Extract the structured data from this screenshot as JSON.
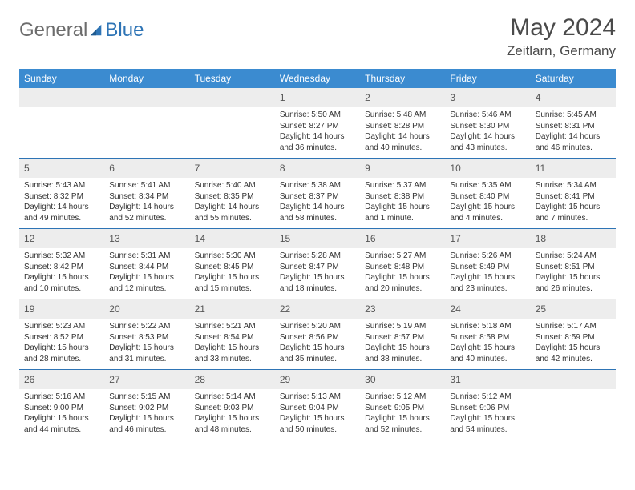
{
  "logo": {
    "text1": "General",
    "text2": "Blue"
  },
  "title": "May 2024",
  "location": "Zeitlarn, Germany",
  "colors": {
    "header_bg": "#3b8bd0",
    "header_text": "#ffffff",
    "divider": "#2e74b5",
    "daynum_bg": "#ededed",
    "text": "#333333",
    "logo_gray": "#6c6c6c",
    "logo_blue": "#2e74b5"
  },
  "day_names": [
    "Sunday",
    "Monday",
    "Tuesday",
    "Wednesday",
    "Thursday",
    "Friday",
    "Saturday"
  ],
  "weeks": [
    [
      {
        "n": "",
        "sr": "",
        "ss": "",
        "dl": ""
      },
      {
        "n": "",
        "sr": "",
        "ss": "",
        "dl": ""
      },
      {
        "n": "",
        "sr": "",
        "ss": "",
        "dl": ""
      },
      {
        "n": "1",
        "sr": "Sunrise: 5:50 AM",
        "ss": "Sunset: 8:27 PM",
        "dl": "Daylight: 14 hours and 36 minutes."
      },
      {
        "n": "2",
        "sr": "Sunrise: 5:48 AM",
        "ss": "Sunset: 8:28 PM",
        "dl": "Daylight: 14 hours and 40 minutes."
      },
      {
        "n": "3",
        "sr": "Sunrise: 5:46 AM",
        "ss": "Sunset: 8:30 PM",
        "dl": "Daylight: 14 hours and 43 minutes."
      },
      {
        "n": "4",
        "sr": "Sunrise: 5:45 AM",
        "ss": "Sunset: 8:31 PM",
        "dl": "Daylight: 14 hours and 46 minutes."
      }
    ],
    [
      {
        "n": "5",
        "sr": "Sunrise: 5:43 AM",
        "ss": "Sunset: 8:32 PM",
        "dl": "Daylight: 14 hours and 49 minutes."
      },
      {
        "n": "6",
        "sr": "Sunrise: 5:41 AM",
        "ss": "Sunset: 8:34 PM",
        "dl": "Daylight: 14 hours and 52 minutes."
      },
      {
        "n": "7",
        "sr": "Sunrise: 5:40 AM",
        "ss": "Sunset: 8:35 PM",
        "dl": "Daylight: 14 hours and 55 minutes."
      },
      {
        "n": "8",
        "sr": "Sunrise: 5:38 AM",
        "ss": "Sunset: 8:37 PM",
        "dl": "Daylight: 14 hours and 58 minutes."
      },
      {
        "n": "9",
        "sr": "Sunrise: 5:37 AM",
        "ss": "Sunset: 8:38 PM",
        "dl": "Daylight: 15 hours and 1 minute."
      },
      {
        "n": "10",
        "sr": "Sunrise: 5:35 AM",
        "ss": "Sunset: 8:40 PM",
        "dl": "Daylight: 15 hours and 4 minutes."
      },
      {
        "n": "11",
        "sr": "Sunrise: 5:34 AM",
        "ss": "Sunset: 8:41 PM",
        "dl": "Daylight: 15 hours and 7 minutes."
      }
    ],
    [
      {
        "n": "12",
        "sr": "Sunrise: 5:32 AM",
        "ss": "Sunset: 8:42 PM",
        "dl": "Daylight: 15 hours and 10 minutes."
      },
      {
        "n": "13",
        "sr": "Sunrise: 5:31 AM",
        "ss": "Sunset: 8:44 PM",
        "dl": "Daylight: 15 hours and 12 minutes."
      },
      {
        "n": "14",
        "sr": "Sunrise: 5:30 AM",
        "ss": "Sunset: 8:45 PM",
        "dl": "Daylight: 15 hours and 15 minutes."
      },
      {
        "n": "15",
        "sr": "Sunrise: 5:28 AM",
        "ss": "Sunset: 8:47 PM",
        "dl": "Daylight: 15 hours and 18 minutes."
      },
      {
        "n": "16",
        "sr": "Sunrise: 5:27 AM",
        "ss": "Sunset: 8:48 PM",
        "dl": "Daylight: 15 hours and 20 minutes."
      },
      {
        "n": "17",
        "sr": "Sunrise: 5:26 AM",
        "ss": "Sunset: 8:49 PM",
        "dl": "Daylight: 15 hours and 23 minutes."
      },
      {
        "n": "18",
        "sr": "Sunrise: 5:24 AM",
        "ss": "Sunset: 8:51 PM",
        "dl": "Daylight: 15 hours and 26 minutes."
      }
    ],
    [
      {
        "n": "19",
        "sr": "Sunrise: 5:23 AM",
        "ss": "Sunset: 8:52 PM",
        "dl": "Daylight: 15 hours and 28 minutes."
      },
      {
        "n": "20",
        "sr": "Sunrise: 5:22 AM",
        "ss": "Sunset: 8:53 PM",
        "dl": "Daylight: 15 hours and 31 minutes."
      },
      {
        "n": "21",
        "sr": "Sunrise: 5:21 AM",
        "ss": "Sunset: 8:54 PM",
        "dl": "Daylight: 15 hours and 33 minutes."
      },
      {
        "n": "22",
        "sr": "Sunrise: 5:20 AM",
        "ss": "Sunset: 8:56 PM",
        "dl": "Daylight: 15 hours and 35 minutes."
      },
      {
        "n": "23",
        "sr": "Sunrise: 5:19 AM",
        "ss": "Sunset: 8:57 PM",
        "dl": "Daylight: 15 hours and 38 minutes."
      },
      {
        "n": "24",
        "sr": "Sunrise: 5:18 AM",
        "ss": "Sunset: 8:58 PM",
        "dl": "Daylight: 15 hours and 40 minutes."
      },
      {
        "n": "25",
        "sr": "Sunrise: 5:17 AM",
        "ss": "Sunset: 8:59 PM",
        "dl": "Daylight: 15 hours and 42 minutes."
      }
    ],
    [
      {
        "n": "26",
        "sr": "Sunrise: 5:16 AM",
        "ss": "Sunset: 9:00 PM",
        "dl": "Daylight: 15 hours and 44 minutes."
      },
      {
        "n": "27",
        "sr": "Sunrise: 5:15 AM",
        "ss": "Sunset: 9:02 PM",
        "dl": "Daylight: 15 hours and 46 minutes."
      },
      {
        "n": "28",
        "sr": "Sunrise: 5:14 AM",
        "ss": "Sunset: 9:03 PM",
        "dl": "Daylight: 15 hours and 48 minutes."
      },
      {
        "n": "29",
        "sr": "Sunrise: 5:13 AM",
        "ss": "Sunset: 9:04 PM",
        "dl": "Daylight: 15 hours and 50 minutes."
      },
      {
        "n": "30",
        "sr": "Sunrise: 5:12 AM",
        "ss": "Sunset: 9:05 PM",
        "dl": "Daylight: 15 hours and 52 minutes."
      },
      {
        "n": "31",
        "sr": "Sunrise: 5:12 AM",
        "ss": "Sunset: 9:06 PM",
        "dl": "Daylight: 15 hours and 54 minutes."
      },
      {
        "n": "",
        "sr": "",
        "ss": "",
        "dl": ""
      }
    ]
  ]
}
